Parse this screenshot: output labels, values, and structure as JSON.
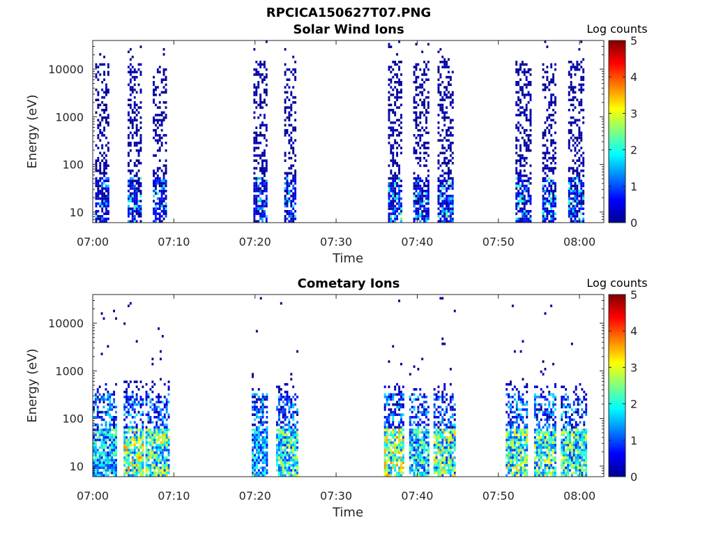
{
  "figure_title": "RPCICA150627T07.PNG",
  "chart_data": [
    {
      "type": "heatmap",
      "title": "Solar Wind Ions",
      "xlabel": "Time",
      "ylabel": "Energy (eV)",
      "y_scale": "log",
      "ylim": [
        6,
        40000
      ],
      "x_range_minutes": [
        0,
        63
      ],
      "x_tick_minutes": [
        0,
        10,
        20,
        30,
        40,
        50,
        60
      ],
      "x_tick_labels": [
        "07:00",
        "07:10",
        "07:20",
        "07:30",
        "07:40",
        "07:50",
        "08:00"
      ],
      "y_ticks": [
        10,
        100,
        1000,
        10000
      ],
      "y_tick_labels": [
        "10",
        "100",
        "1000",
        "10000"
      ],
      "colorbar": {
        "label": "Log counts",
        "range": [
          0,
          5
        ],
        "ticks": [
          "0",
          "1",
          "2",
          "3",
          "4",
          "5"
        ],
        "colormap": "jet"
      },
      "bursts": [
        {
          "start": 0.3,
          "end": 2.0,
          "emax": 12000,
          "low_peak": 2.0,
          "sw": true
        },
        {
          "start": 4.3,
          "end": 5.9,
          "emax": 12000,
          "low_peak": 2.2,
          "sw": true
        },
        {
          "start": 7.4,
          "end": 9.0,
          "emax": 10000,
          "low_peak": 1.8,
          "sw": true
        },
        {
          "start": 19.8,
          "end": 21.4,
          "emax": 14000,
          "low_peak": 1.5,
          "sw": true
        },
        {
          "start": 23.6,
          "end": 25.1,
          "emax": 10000,
          "low_peak": 1.8,
          "sw": true
        },
        {
          "start": 36.4,
          "end": 38.1,
          "emax": 14000,
          "low_peak": 2.4,
          "sw": true
        },
        {
          "start": 39.5,
          "end": 41.3,
          "emax": 14000,
          "low_peak": 2.0,
          "sw": true
        },
        {
          "start": 42.5,
          "end": 44.4,
          "emax": 14000,
          "low_peak": 2.3,
          "sw": true
        },
        {
          "start": 52.1,
          "end": 53.9,
          "emax": 14000,
          "low_peak": 2.1,
          "sw": true
        },
        {
          "start": 55.4,
          "end": 57.1,
          "emax": 12000,
          "low_peak": 2.1,
          "sw": true
        },
        {
          "start": 58.6,
          "end": 60.4,
          "emax": 14000,
          "low_peak": 2.1,
          "sw": true
        }
      ]
    },
    {
      "type": "heatmap",
      "title": "Cometary Ions",
      "xlabel": "Time",
      "ylabel": "Energy (eV)",
      "y_scale": "log",
      "ylim": [
        6,
        40000
      ],
      "x_range_minutes": [
        0,
        63
      ],
      "x_tick_minutes": [
        0,
        10,
        20,
        30,
        40,
        50,
        60
      ],
      "x_tick_labels": [
        "07:00",
        "07:10",
        "07:20",
        "07:30",
        "07:40",
        "07:50",
        "08:00"
      ],
      "y_ticks": [
        10,
        100,
        1000,
        10000
      ],
      "y_tick_labels": [
        "10",
        "100",
        "1000",
        "10000"
      ],
      "colorbar": {
        "label": "Log counts",
        "range": [
          0,
          5
        ],
        "ticks": [
          "0",
          "1",
          "2",
          "3",
          "4",
          "5"
        ],
        "colormap": "jet"
      },
      "bursts": [
        {
          "start": 0.0,
          "end": 3.0,
          "emax": 500,
          "low_peak": 2.6,
          "sw": false
        },
        {
          "start": 3.8,
          "end": 6.3,
          "emax": 600,
          "low_peak": 3.8,
          "sw": false
        },
        {
          "start": 6.5,
          "end": 9.3,
          "emax": 600,
          "low_peak": 3.4,
          "sw": false
        },
        {
          "start": 19.6,
          "end": 21.6,
          "emax": 400,
          "low_peak": 2.3,
          "sw": false
        },
        {
          "start": 22.6,
          "end": 25.3,
          "emax": 500,
          "low_peak": 3.0,
          "sw": false
        },
        {
          "start": 35.9,
          "end": 38.4,
          "emax": 500,
          "low_peak": 3.7,
          "sw": false
        },
        {
          "start": 39.0,
          "end": 41.4,
          "emax": 400,
          "low_peak": 2.8,
          "sw": false
        },
        {
          "start": 42.0,
          "end": 44.6,
          "emax": 500,
          "low_peak": 3.5,
          "sw": false
        },
        {
          "start": 50.9,
          "end": 53.6,
          "emax": 500,
          "low_peak": 3.5,
          "sw": false
        },
        {
          "start": 54.4,
          "end": 57.0,
          "emax": 500,
          "low_peak": 3.4,
          "sw": false
        },
        {
          "start": 57.7,
          "end": 60.8,
          "emax": 500,
          "low_peak": 3.2,
          "sw": false
        }
      ]
    }
  ]
}
